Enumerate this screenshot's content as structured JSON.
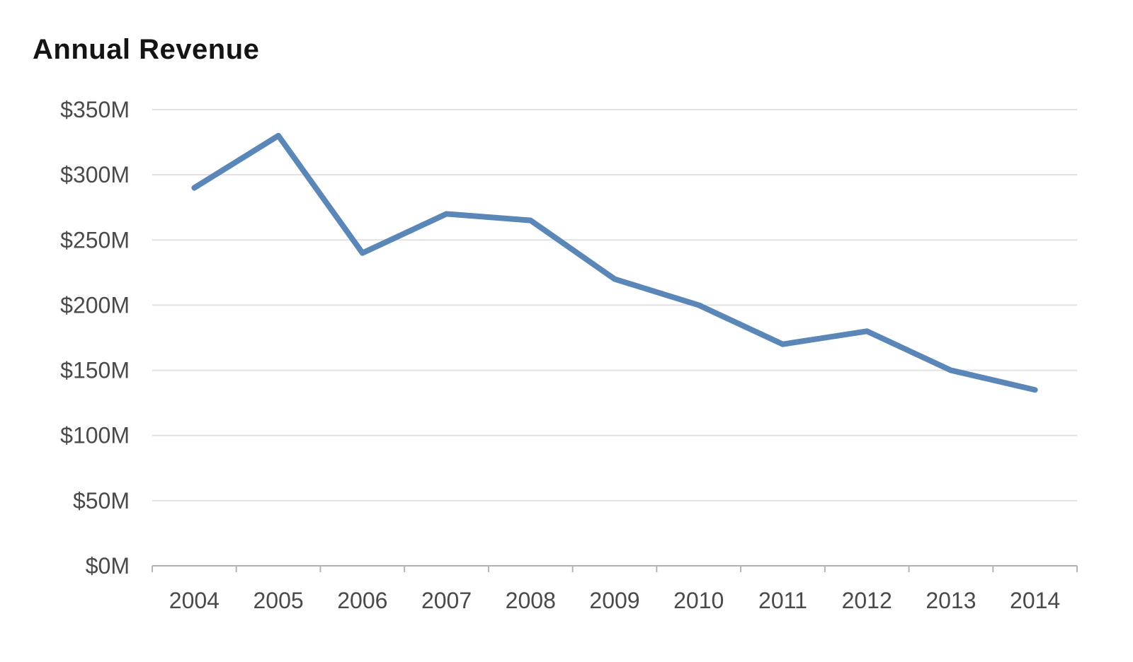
{
  "chart_data": {
    "type": "line",
    "title": "Annual Revenue",
    "x": [
      "2004",
      "2005",
      "2006",
      "2007",
      "2008",
      "2009",
      "2010",
      "2011",
      "2012",
      "2013",
      "2014"
    ],
    "values": [
      290,
      330,
      240,
      270,
      265,
      220,
      200,
      170,
      180,
      150,
      135
    ],
    "xlabel": "",
    "ylabel": "",
    "ylim": [
      0,
      350
    ],
    "ytick_step": 50,
    "ytick_prefix": "$",
    "ytick_suffix": "M",
    "grid": true,
    "legend": false,
    "colors": {
      "line": "#5b87b8",
      "grid": "#e1e1e1",
      "axis": "#b3b3b3",
      "labels": "#4a4a4a",
      "title": "#141414"
    }
  }
}
